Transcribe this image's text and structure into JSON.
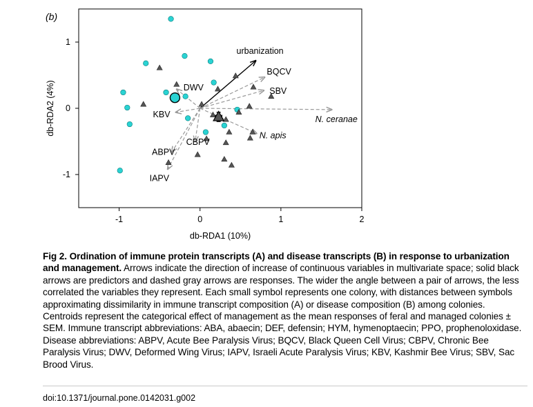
{
  "chart_data": {
    "type": "scatter",
    "panel_label": "(b)",
    "xlabel": "db-RDA1 (10%)",
    "ylabel": "db-RDA2 (4%)",
    "xlim": [
      -1.5,
      2
    ],
    "ylim": [
      -1.5,
      1.5
    ],
    "xticks": [
      -1,
      0,
      1,
      2
    ],
    "yticks": [
      -1,
      0,
      1
    ],
    "grid": false,
    "series": [
      {
        "marker": "circle",
        "color": "#2ad3d3",
        "points": [
          [
            -0.36,
            1.35
          ],
          [
            -0.67,
            0.68
          ],
          [
            -0.19,
            0.79
          ],
          [
            0.13,
            0.71
          ],
          [
            -0.95,
            0.24
          ],
          [
            -0.42,
            0.24
          ],
          [
            0.17,
            0.39
          ],
          [
            -0.18,
            0.18
          ],
          [
            -0.9,
            0.01
          ],
          [
            -0.87,
            -0.24
          ],
          [
            -0.15,
            -0.15
          ],
          [
            0.07,
            -0.36
          ],
          [
            0.3,
            -0.26
          ],
          [
            0.46,
            -0.02
          ],
          [
            -0.99,
            -0.94
          ]
        ]
      },
      {
        "marker": "triangle",
        "color": "#555555",
        "points": [
          [
            -0.5,
            0.61
          ],
          [
            -0.29,
            0.36
          ],
          [
            0.22,
            0.29
          ],
          [
            0.44,
            0.49
          ],
          [
            0.66,
            0.32
          ],
          [
            0.88,
            0.18
          ],
          [
            0.61,
            0.03
          ],
          [
            -0.7,
            0.06
          ],
          [
            0.02,
            0.06
          ],
          [
            0.48,
            -0.06
          ],
          [
            0.16,
            -0.1
          ],
          [
            0.32,
            -0.17
          ],
          [
            0.36,
            -0.36
          ],
          [
            0.65,
            -0.36
          ],
          [
            0.62,
            -0.45
          ],
          [
            0.32,
            -0.52
          ],
          [
            0.08,
            -0.46
          ],
          [
            -0.03,
            -0.7
          ],
          [
            0.3,
            -0.77
          ],
          [
            0.39,
            -0.86
          ],
          [
            -0.39,
            -0.82
          ]
        ]
      }
    ],
    "centroids": [
      {
        "marker": "circle",
        "color": "#2ad3d3",
        "x": -0.31,
        "y": 0.16,
        "xerr": 0.04,
        "yerr": 0.06
      },
      {
        "marker": "triangle",
        "color": "#555555",
        "x": 0.23,
        "y": -0.13,
        "xerr": 0.04,
        "yerr": 0.07
      }
    ],
    "arrows": [
      {
        "label": "urbanization",
        "style": "solid",
        "color": "#000000",
        "x": 0.69,
        "y": 0.72
      },
      {
        "label": "BQCV",
        "style": "dashed",
        "color": "#999999",
        "x": 0.8,
        "y": 0.47
      },
      {
        "label": "SBV",
        "style": "dashed",
        "color": "#999999",
        "x": 0.79,
        "y": 0.27
      },
      {
        "label": "N. ceranae",
        "style": "dashed",
        "color": "#999999",
        "x": 1.63,
        "y": -0.02
      },
      {
        "label": "N. apis",
        "style": "dashed",
        "color": "#999999",
        "x": 0.7,
        "y": -0.38
      },
      {
        "label": "DWV",
        "style": "dashed",
        "color": "#999999",
        "x": -0.29,
        "y": 0.29
      },
      {
        "label": "KBV",
        "style": "dashed",
        "color": "#999999",
        "x": -0.3,
        "y": -0.06
      },
      {
        "label": "CBPV",
        "style": "dashed",
        "color": "#999999",
        "x": -0.06,
        "y": -0.5
      },
      {
        "label": "ABPV",
        "style": "dashed",
        "color": "#999999",
        "x": -0.35,
        "y": -0.66
      },
      {
        "label": "IAPV",
        "style": "dashed",
        "color": "#999999",
        "x": -0.4,
        "y": -0.92
      }
    ]
  },
  "caption": {
    "title": "Fig 2. Ordination of immune protein transcripts (A) and disease transcripts (B) in response to urbanization and management.",
    "body": "Arrows indicate the direction of increase of continuous variables in multivariate space; solid black arrows are predictors and dashed gray arrows are responses. The wider the angle between a pair of arrows, the less correlated the variables they represent. Each small symbol represents one colony, with distances between symbols approximating dissimilarity in immune transcript composition (A) or disease composition (B) among colonies. Centroids represent the categorical effect of management as the mean responses of feral and managed colonies ± SEM. Immune transcript abbreviations: ABA, abaecin; DEF, defensin; HYM, hymenoptaecin; PPO, prophenoloxidase. Disease abbreviations: ABPV, Acute Bee Paralysis Virus; BQCV, Black Queen Cell Virus; CBPV, Chronic Bee Paralysis Virus; DWV, Deformed Wing Virus; IAPV, Israeli Acute Paralysis Virus; KBV, Kashmir Bee Virus; SBV, Sac Brood Virus."
  },
  "doi": "doi:10.1371/journal.pone.0142031.g002"
}
